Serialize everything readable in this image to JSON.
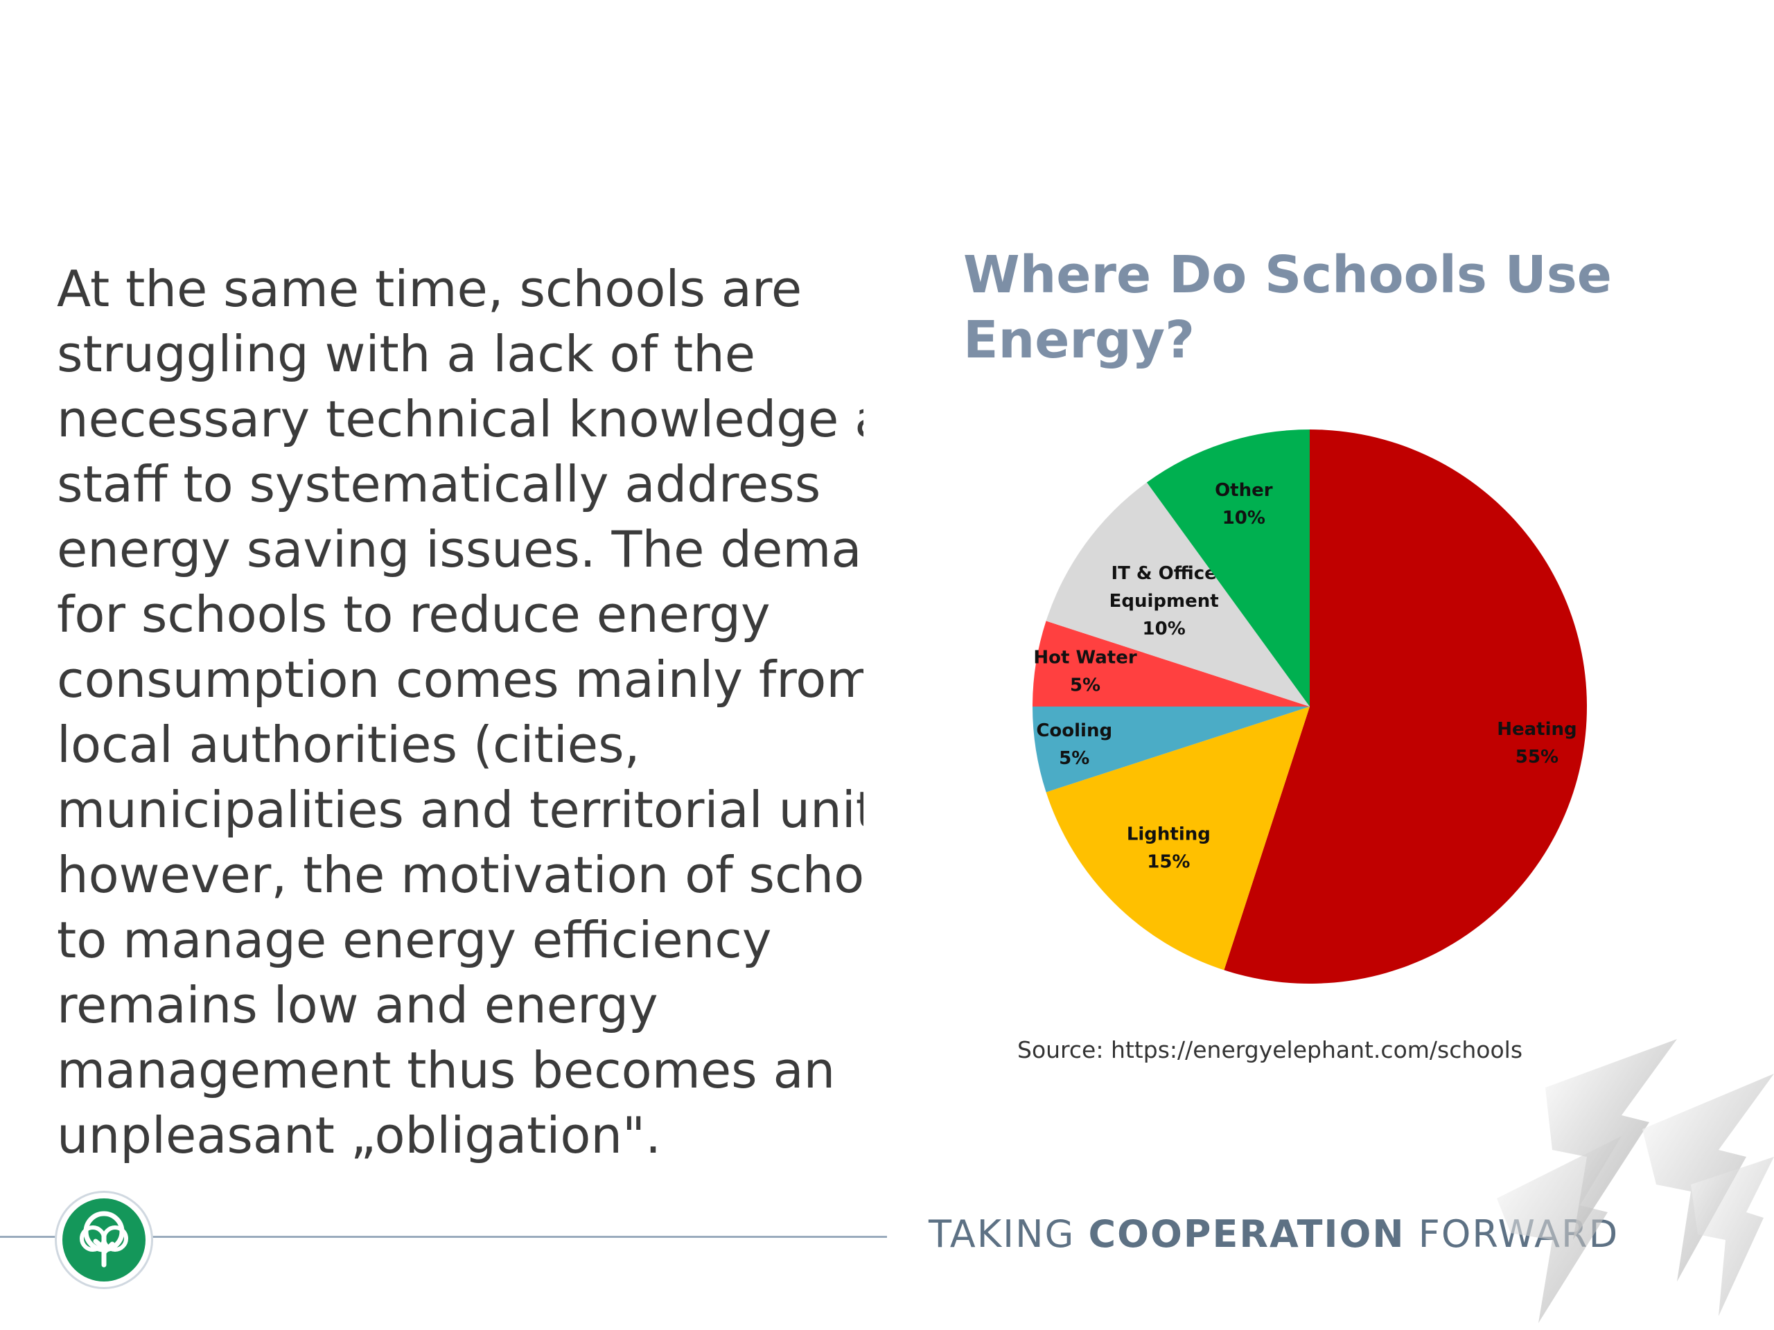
{
  "body_text": {
    "lines": [
      "At the same time, schools are",
      "struggling with a lack of the",
      "necessary technical knowledge and",
      "staff to systematically address",
      "energy saving issues. The demand",
      "for schools to reduce energy",
      "consumption comes mainly from",
      "local authorities (cities,",
      "municipalities and territorial units);",
      "however, the motivation of schools",
      "to manage energy efficiency",
      "remains low and energy",
      "management thus becomes an",
      "unpleasant „obligation\"."
    ]
  },
  "chart_title": {
    "line1": "Where Do Schools Use",
    "line2": "Energy?"
  },
  "chart_data": {
    "type": "pie",
    "title": "Where Do Schools Use Energy?",
    "slices": [
      {
        "label": "Heating",
        "value": 55,
        "pct": "55%",
        "color": "#c00000"
      },
      {
        "label": "Lighting",
        "value": 15,
        "pct": "15%",
        "color": "#ffc000"
      },
      {
        "label": "Cooling",
        "value": 5,
        "pct": "5%",
        "color": "#4bacc6"
      },
      {
        "label": "Hot Water",
        "value": 5,
        "pct": "5%",
        "color": "#ff4040"
      },
      {
        "label": "IT & Office Equipment",
        "value": 10,
        "pct": "10%",
        "color": "#d9d9d9"
      },
      {
        "label": "Other",
        "value": 10,
        "pct": "10%",
        "color": "#00b050"
      }
    ]
  },
  "source": "Source: https://energyelephant.com/schools",
  "footer": {
    "tagline_1": "TAKING ",
    "tagline_2": "COOPERATION",
    "tagline_3": " FORWARD"
  }
}
